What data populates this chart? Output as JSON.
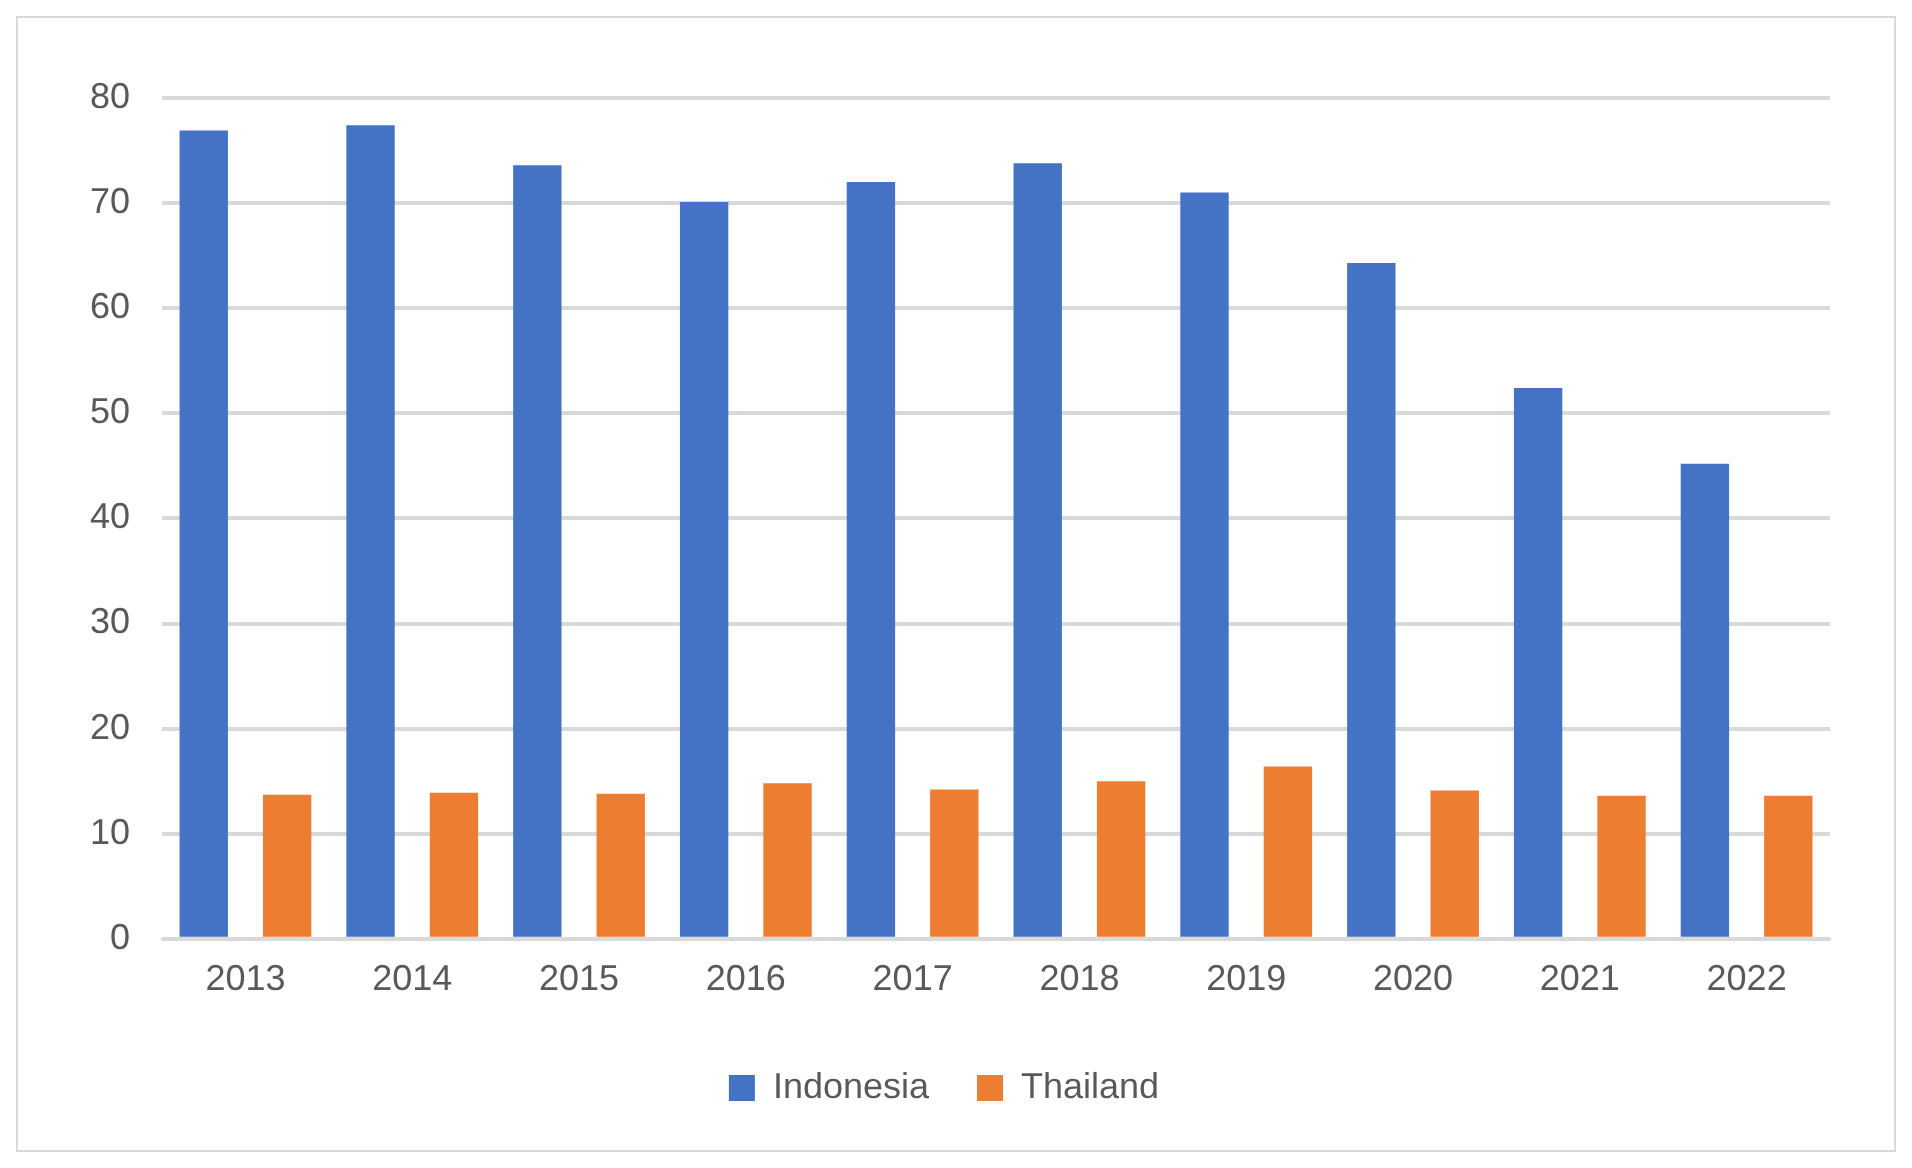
{
  "chart_data": {
    "type": "bar",
    "categories": [
      "2013",
      "2014",
      "2015",
      "2016",
      "2017",
      "2018",
      "2019",
      "2020",
      "2021",
      "2022"
    ],
    "series": [
      {
        "name": "Indonesia",
        "color": "#4472c4",
        "values": [
          76.9,
          77.4,
          73.6,
          70.1,
          72.0,
          73.8,
          71.0,
          64.3,
          52.4,
          45.2
        ]
      },
      {
        "name": "Thailand",
        "color": "#ed7d31",
        "values": [
          13.7,
          13.9,
          13.8,
          14.8,
          14.2,
          15.0,
          16.4,
          14.1,
          13.6,
          13.6
        ]
      }
    ],
    "ylim": [
      0,
      80
    ],
    "yticks": [
      0,
      10,
      20,
      30,
      40,
      50,
      60,
      70,
      80
    ],
    "grid": "y",
    "legend": "bottom"
  }
}
